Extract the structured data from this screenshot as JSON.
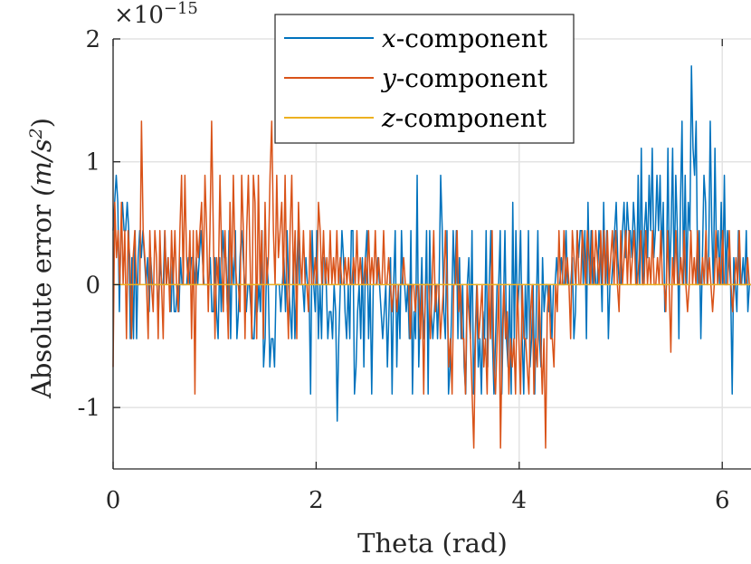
{
  "chart_data": {
    "type": "line",
    "title": "",
    "xlabel": "Theta (rad)",
    "ylabel_text": "Absolute error ",
    "ylabel_unit": "(m/s",
    "ylabel_unit_exp": "2",
    "ylabel_unit_close": ")",
    "exponent_base": "×10",
    "exponent_power": "−15",
    "xlim": [
      0,
      6.2832
    ],
    "ylim": [
      -1.5,
      2
    ],
    "xticks": [
      0,
      2,
      4,
      6
    ],
    "xtick_labels": [
      "0",
      "2",
      "4",
      "6"
    ],
    "yticks": [
      -1,
      0,
      1,
      2
    ],
    "ytick_labels": [
      "-1",
      "0",
      "1",
      "2"
    ],
    "grid": true,
    "legend_position": "top-center",
    "value_scale": "1e-15",
    "series": [
      {
        "name_var": "x",
        "name_rest": "-component",
        "color": "#0072BD",
        "x_start": 0,
        "x_end": 6.2832,
        "values": [
          0.44,
          0.67,
          0.89,
          0.67,
          -0.22,
          0.44,
          0.67,
          0.44,
          0.44,
          0.67,
          0.44,
          -0.44,
          0.22,
          -0.44,
          0.44,
          -0.44,
          0.22,
          0.44,
          0.22,
          0.44,
          0.22,
          0.0,
          0.22,
          -0.22,
          0.22,
          0.0,
          0.0,
          0.0,
          0.0,
          -0.22,
          0.22,
          0.0,
          0.0,
          0.44,
          0.0,
          0.22,
          0.0,
          -0.22,
          0.22,
          -0.22,
          -0.22,
          0.0,
          -0.22,
          0.22,
          0.0,
          0.0,
          0.0,
          0.0,
          0.22,
          0.0,
          0.22,
          0.22,
          0.0,
          0.22,
          0.0,
          0.22,
          0.44,
          0.22,
          0.0,
          0.0,
          0.0,
          0.0,
          0.22,
          -0.22,
          -0.22,
          0.22,
          -0.22,
          -0.44,
          0.22,
          -0.22,
          0.44,
          0.22,
          0.22,
          -0.22,
          0.44,
          -0.44,
          0.22,
          0.0,
          0.44,
          -0.44,
          -0.22,
          0.22,
          0.44,
          0.22,
          0.0,
          -0.22,
          0.0,
          0.0,
          -0.22,
          -0.44,
          -0.44,
          0.0,
          -0.22,
          0.0,
          -0.22,
          0.44,
          -0.67,
          -0.44,
          0.22,
          0.0,
          -0.67,
          -0.44,
          -0.44,
          -0.67,
          0.0,
          0.0,
          0.0,
          -0.22,
          0.0,
          0.22,
          -0.22,
          0.44,
          0.0,
          -0.22,
          -0.44,
          0.22,
          -0.44,
          0.0,
          0.44,
          0.0,
          0.0,
          0.0,
          -0.22,
          0.22,
          0.0,
          0.0,
          -0.89,
          0.44,
          0.0,
          -0.22,
          0.44,
          -0.44,
          0.0,
          -0.44,
          0.22,
          0.22,
          0.0,
          -0.44,
          -0.22,
          -0.22,
          -0.44,
          0.0,
          -0.22,
          -1.11,
          -0.44,
          0.0,
          0.44,
          0.22,
          -0.22,
          -0.44,
          0.0,
          -0.44,
          0.44,
          0.44,
          -0.89,
          -0.67,
          -0.22,
          0.0,
          -0.44,
          0.22,
          -0.67,
          0.22,
          0.44,
          -0.44,
          0.0,
          -0.89,
          0.0,
          0.0,
          0.0,
          0.22,
          0.0,
          -0.22,
          -0.44,
          -0.22,
          0.0,
          -0.67,
          -0.22,
          0.22,
          -0.89,
          0.0,
          0.44,
          -0.67,
          0.0,
          -0.44,
          0.44,
          0.0,
          0.0,
          -0.22,
          0.0,
          -0.44,
          0.44,
          -0.89,
          -0.22,
          -0.44,
          0.89,
          -0.67,
          -0.22,
          0.22,
          -0.44,
          -0.22,
          0.44,
          -0.89,
          0.44,
          -0.22,
          -0.44,
          -0.22,
          0.0,
          -0.44,
          0.0,
          0.89,
          0.44,
          -0.22,
          -0.44,
          0.44,
          -0.89,
          -0.67,
          -0.22,
          0.44,
          0.0,
          0.44,
          -0.44,
          0.22,
          -0.44,
          0.0,
          -0.67,
          -0.89,
          0.0,
          0.22,
          -0.44,
          0.44,
          -0.89,
          -0.44,
          0.0,
          -0.67,
          -0.44,
          -0.89,
          -0.22,
          -0.44,
          0.44,
          -0.67,
          0.0,
          0.44,
          -0.44,
          -0.89,
          -0.44,
          0.0,
          0.0,
          0.44,
          -0.89,
          -0.22,
          0.44,
          -0.44,
          -0.67,
          0.0,
          -0.89,
          0.67,
          -0.44,
          0.44,
          -0.22,
          0.0,
          0.44,
          -0.44,
          -0.89,
          0.0,
          -0.44,
          0.44,
          -0.67,
          -0.44,
          0.0,
          -0.89,
          -0.22,
          0.44,
          -0.44,
          -0.67,
          0.22,
          -0.22,
          0.0,
          0.0,
          -0.22,
          0.0,
          -0.44,
          0.0,
          0.0,
          0.22,
          0.0,
          0.0,
          0.22,
          0.0,
          0.0,
          0.44,
          0.0,
          0.0,
          0.0,
          0.22,
          -0.44,
          -0.22,
          0.44,
          0.22,
          0.44,
          0.44,
          0.0,
          0.44,
          -0.44,
          0.67,
          0.0,
          0.44,
          0.0,
          0.22,
          0.0,
          0.0,
          0.44,
          0.22,
          -0.22,
          0.67,
          0.0,
          0.44,
          -0.44,
          0.0,
          0.0,
          0.22,
          0.44,
          0.67,
          0.22,
          0.0,
          0.0,
          0.44,
          0.67,
          0.22,
          0.67,
          0.44,
          0.44,
          0.22,
          0.67,
          0.44,
          0.0,
          0.89,
          0.0,
          1.11,
          0.0,
          0.44,
          0.67,
          0.22,
          0.89,
          0.44,
          1.11,
          0.22,
          0.44,
          0.89,
          0.44,
          0.89,
          0.22,
          0.67,
          -0.22,
          0.0,
          1.11,
          0.0,
          0.44,
          1.11,
          0.0,
          0.89,
          0.44,
          -0.44,
          0.67,
          1.33,
          0.0,
          0.89,
          0.0,
          0.67,
          0.44,
          1.78,
          1.11,
          0.89,
          1.33,
          0.0,
          0.44,
          -0.44,
          0.22,
          0.89,
          0.67,
          0.0,
          0.22,
          1.33,
          0.44,
          0.0,
          1.11,
          0.22,
          0.44,
          0.0,
          0.67,
          0.0,
          0.89,
          0.0,
          0.44,
          0.22,
          0.0,
          -0.89,
          0.22,
          0.0,
          -0.22,
          0.44,
          0.0,
          0.0,
          0.22,
          0.0,
          0.44,
          -0.22,
          0.0,
          0.0
        ]
      },
      {
        "name_var": "y",
        "name_rest": "-component",
        "color": "#D95319",
        "x_start": 0,
        "x_end": 6.2832,
        "values": [
          -0.67,
          0.67,
          0.22,
          0.44,
          0.0,
          0.67,
          0.0,
          0.44,
          -0.44,
          0.44,
          0.22,
          -0.44,
          0.22,
          0.44,
          0.0,
          0.0,
          0.0,
          1.33,
          0.44,
          0.22,
          0.0,
          -0.44,
          0.44,
          0.0,
          -0.22,
          0.44,
          0.22,
          -0.44,
          0.44,
          0.0,
          -0.44,
          0.44,
          0.0,
          0.22,
          -0.22,
          0.44,
          0.0,
          0.44,
          0.0,
          -0.22,
          0.44,
          0.89,
          0.0,
          0.89,
          0.22,
          0.0,
          0.44,
          -0.44,
          0.44,
          -0.89,
          0.44,
          0.22,
          0.44,
          0.67,
          0.0,
          0.89,
          0.44,
          -0.22,
          0.44,
          1.33,
          0.44,
          -0.44,
          0.22,
          0.0,
          0.89,
          0.22,
          -0.22,
          0.44,
          0.0,
          -0.44,
          0.67,
          0.0,
          0.89,
          0.22,
          0.0,
          0.0,
          -0.22,
          0.89,
          0.44,
          -0.44,
          0.44,
          0.89,
          0.22,
          -0.44,
          0.89,
          0.67,
          -0.44,
          0.89,
          0.0,
          0.44,
          -0.44,
          0.67,
          0.0,
          0.22,
          0.89,
          1.33,
          0.44,
          0.0,
          0.89,
          0.22,
          0.44,
          0.67,
          0.0,
          0.89,
          0.0,
          -0.44,
          0.44,
          0.89,
          0.0,
          0.44,
          -0.44,
          0.67,
          0.22,
          0.0,
          0.44,
          0.0,
          0.0,
          -0.22,
          0.44,
          0.0,
          0.0,
          0.22,
          0.0,
          0.67,
          0.44,
          0.0,
          0.44,
          0.0,
          0.22,
          0.0,
          0.44,
          0.0,
          0.22,
          0.0,
          0.44,
          0.0,
          0.22,
          0.0,
          0.0,
          0.22,
          0.0,
          0.22,
          0.0,
          0.0,
          0.22,
          0.0,
          0.44,
          0.0,
          0.22,
          0.0,
          0.0,
          0.22,
          0.0,
          0.44,
          0.0,
          0.22,
          0.0,
          0.44,
          0.0,
          0.22,
          0.0,
          0.0,
          0.44,
          0.0,
          0.0,
          0.22,
          0.0,
          -0.22,
          0.0,
          0.0,
          -0.22,
          0.0,
          0.0,
          0.0,
          0.22,
          0.0,
          0.0,
          0.0,
          -0.44,
          0.0,
          0.0,
          -0.22,
          0.0,
          0.0,
          -0.44,
          0.0,
          -0.89,
          0.0,
          0.0,
          0.0,
          -0.44,
          0.0,
          0.44,
          -0.22,
          0.0,
          0.0,
          -0.44,
          -0.22,
          0.0,
          0.44,
          0.0,
          -0.67,
          -0.44,
          -0.89,
          0.0,
          0.0,
          0.44,
          -0.22,
          0.0,
          -0.44,
          -0.44,
          -0.89,
          0.0,
          -0.22,
          -0.44,
          -0.89,
          -1.33,
          -0.44,
          0.0,
          -0.44,
          -0.22,
          0.0,
          -0.67,
          -0.44,
          -0.89,
          0.0,
          -0.44,
          0.44,
          -0.67,
          -0.89,
          -0.44,
          0.0,
          -1.33,
          -0.44,
          0.0,
          -0.44,
          -0.22,
          -0.89,
          -0.44,
          -0.67,
          -0.44,
          -0.89,
          0.0,
          -0.44,
          -0.89,
          0.0,
          -0.44,
          -0.44,
          -0.67,
          -0.89,
          -0.22,
          0.0,
          -0.89,
          -0.44,
          -0.67,
          0.0,
          -0.44,
          -0.89,
          -0.44,
          -1.33,
          -0.22,
          0.0,
          -0.44,
          -0.44,
          -0.67,
          0.0,
          -0.22,
          0.44,
          0.0,
          0.0,
          0.44,
          0.0,
          0.22,
          0.0,
          -0.44,
          0.44,
          0.22,
          0.0,
          0.44,
          0.0,
          0.0,
          0.44,
          0.22,
          0.0,
          0.44,
          0.22,
          0.0,
          0.44,
          0.0,
          0.44,
          0.22,
          0.0,
          0.44,
          0.0,
          0.44,
          0.0,
          0.44,
          0.0,
          0.22,
          0.44,
          0.0,
          0.44,
          0.0,
          -0.22,
          0.44,
          0.0,
          0.22,
          0.44,
          0.0,
          0.44,
          0.0,
          0.22,
          0.44,
          0.0,
          0.0,
          0.22,
          0.44,
          0.0,
          0.0,
          0.44,
          0.0,
          0.22,
          0.0,
          0.44,
          0.0,
          0.0,
          0.22,
          0.0,
          0.44,
          0.0,
          0.0,
          -0.22,
          0.44,
          0.0,
          -0.55,
          0.22,
          0.0,
          0.44,
          0.0,
          0.0,
          0.22,
          0.0,
          0.44,
          0.0,
          -0.22,
          0.0,
          0.44,
          0.0,
          0.22,
          0.0,
          0.44,
          0.0,
          0.0,
          0.22,
          0.0,
          0.44,
          0.0,
          0.22,
          0.0,
          -0.22,
          0.0,
          0.44,
          0.0,
          0.22,
          0.0,
          0.44,
          0.0,
          0.0,
          0.0,
          0.44,
          0.0,
          -0.22,
          0.0,
          0.22,
          0.0,
          0.44,
          0.0,
          0.0,
          0.0,
          0.0,
          0.22,
          0.0,
          0.0
        ]
      },
      {
        "name_var": "z",
        "name_rest": "-component",
        "color": "#EDB120",
        "x_start": 0,
        "x_end": 6.2832,
        "values": [
          0.0,
          0.0
        ]
      }
    ]
  }
}
